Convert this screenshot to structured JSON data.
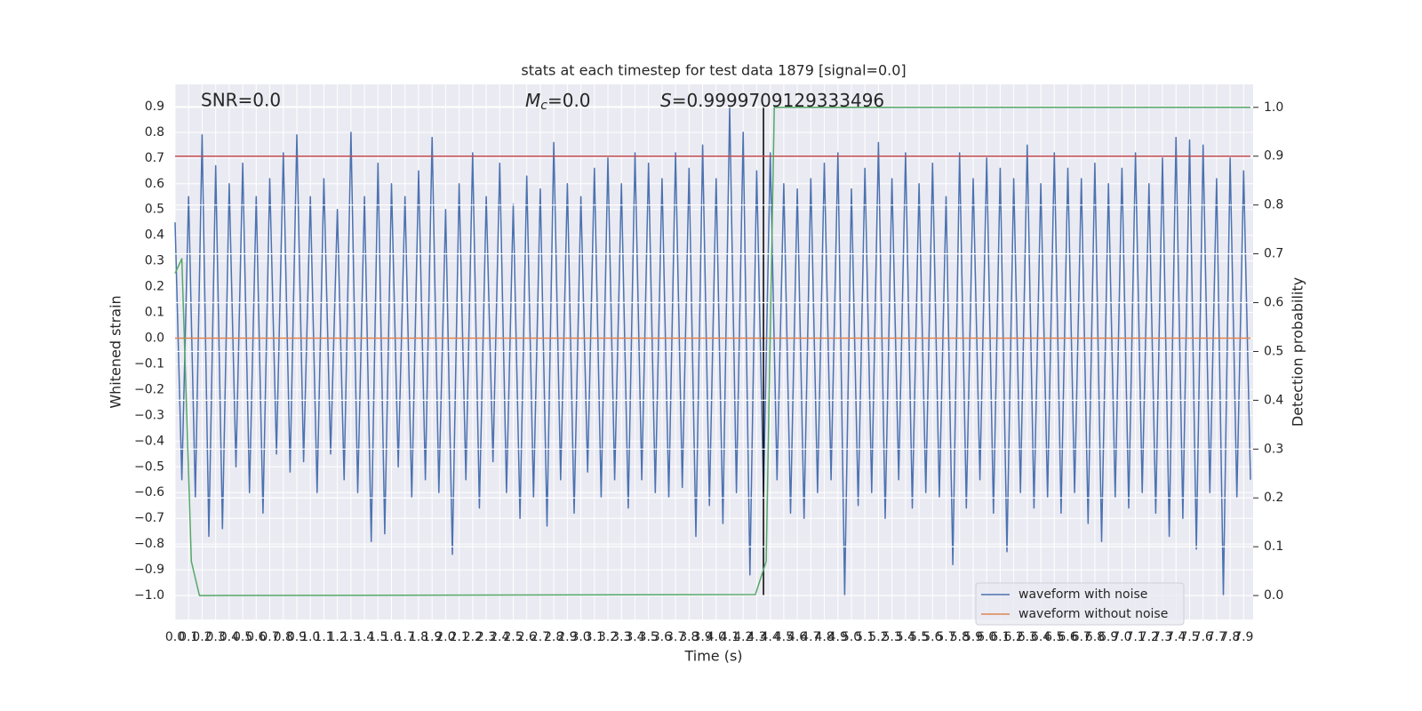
{
  "chart_data": {
    "type": "line",
    "title": "stats at each timestep for test data 1879 [signal=0.0]",
    "xlabel": "Time (s)",
    "ylabel": "Whitened strain",
    "y2label": "Detection probability",
    "annotations": {
      "snr": "SNR=0.0",
      "mc": {
        "symbol": "M",
        "sub": "c",
        "rest": "=0.0"
      },
      "s": {
        "symbol": "S",
        "rest": "=0.9999709129333496"
      }
    },
    "grid": true,
    "legend": "lower right",
    "xlim": [
      0,
      7.97
    ],
    "ylim": [
      -1.093,
      0.986
    ],
    "y2lim": [
      -0.049,
      1.047
    ],
    "xticks": [
      {
        "value": 0,
        "label": "0.0"
      },
      0.1,
      0.2,
      0.3,
      0.4,
      0.5,
      0.6,
      0.7,
      0.8,
      0.9,
      {
        "value": 1,
        "label": "1.0"
      },
      1.1,
      1.2,
      1.3,
      1.4,
      1.5,
      1.6,
      1.7,
      1.8,
      1.9,
      {
        "value": 2,
        "label": "2.0"
      },
      2.1,
      2.2,
      2.3,
      2.4,
      2.5,
      2.6,
      2.7,
      2.8,
      2.9,
      {
        "value": 3,
        "label": "3.0"
      },
      3.1,
      3.2,
      3.3,
      3.4,
      3.5,
      3.6,
      3.7,
      3.8,
      3.9,
      {
        "value": 4,
        "label": "4.0"
      },
      4.1,
      4.2,
      4.3,
      4.4,
      4.5,
      4.6,
      4.7,
      4.8,
      4.9,
      {
        "value": 5,
        "label": "5.0"
      },
      5.1,
      5.2,
      5.3,
      5.4,
      5.5,
      5.6,
      5.7,
      5.8,
      5.9,
      {
        "value": 6,
        "label": "6.0"
      },
      6.1,
      6.2,
      6.3,
      6.4,
      6.5,
      6.6,
      6.7,
      6.8,
      6.9,
      {
        "value": 7,
        "label": "7.0"
      },
      7.1,
      7.2,
      7.3,
      7.4,
      7.5,
      7.6,
      7.7,
      7.8,
      7.9
    ],
    "yticks": [
      0.9,
      0.8,
      0.7,
      0.6,
      0.5,
      0.4,
      0.3,
      0.2,
      0.1,
      {
        "value": 0,
        "label": "0.0"
      },
      {
        "value": -0.1,
        "label": "−0.1"
      },
      {
        "value": -0.2,
        "label": "−0.2"
      },
      {
        "value": -0.3,
        "label": "−0.3"
      },
      {
        "value": -0.4,
        "label": "−0.4"
      },
      {
        "value": -0.5,
        "label": "−0.5"
      },
      {
        "value": -0.6,
        "label": "−0.6"
      },
      {
        "value": -0.7,
        "label": "−0.7"
      },
      {
        "value": -0.8,
        "label": "−0.8"
      },
      {
        "value": -0.9,
        "label": "−0.9"
      },
      {
        "value": -1,
        "label": "−1.0"
      }
    ],
    "y2ticks": [
      {
        "value": 0,
        "label": "0.0"
      },
      0.1,
      0.2,
      0.3,
      0.4,
      0.5,
      0.6,
      0.7,
      0.8,
      0.9,
      {
        "value": 1,
        "label": "1.0"
      }
    ],
    "series": [
      {
        "name": "waveform with noise",
        "color": "#4c72b0",
        "x": [
          0,
          0.05,
          0.1,
          0.15,
          0.2,
          0.25,
          0.3,
          0.35,
          0.4,
          0.45,
          0.5,
          0.55,
          0.6,
          0.65,
          0.7,
          0.75,
          0.8,
          0.85,
          0.9,
          0.95,
          1,
          1.05,
          1.1,
          1.15,
          1.2,
          1.25,
          1.3,
          1.35,
          1.4,
          1.45,
          1.5,
          1.55,
          1.6,
          1.65,
          1.7,
          1.75,
          1.8,
          1.85,
          1.9,
          1.95,
          2,
          2.05,
          2.1,
          2.15,
          2.2,
          2.25,
          2.3,
          2.35,
          2.4,
          2.45,
          2.5,
          2.55,
          2.6,
          2.65,
          2.7,
          2.75,
          2.8,
          2.85,
          2.9,
          2.95,
          3,
          3.05,
          3.1,
          3.15,
          3.2,
          3.25,
          3.3,
          3.35,
          3.4,
          3.45,
          3.5,
          3.55,
          3.6,
          3.65,
          3.7,
          3.75,
          3.8,
          3.85,
          3.9,
          3.95,
          4,
          4.05,
          4.1,
          4.15,
          4.2,
          4.25,
          4.3,
          4.35,
          4.4,
          4.45,
          4.5,
          4.55,
          4.6,
          4.65,
          4.7,
          4.75,
          4.8,
          4.85,
          4.9,
          4.95,
          5,
          5.05,
          5.1,
          5.15,
          5.2,
          5.25,
          5.3,
          5.35,
          5.4,
          5.45,
          5.5,
          5.55,
          5.6,
          5.65,
          5.7,
          5.75,
          5.8,
          5.85,
          5.9,
          5.95,
          6,
          6.05,
          6.1,
          6.15,
          6.2,
          6.25,
          6.3,
          6.35,
          6.4,
          6.45,
          6.5,
          6.55,
          6.6,
          6.65,
          6.7,
          6.75,
          6.8,
          6.85,
          6.9,
          6.95,
          7,
          7.05,
          7.1,
          7.15,
          7.2,
          7.25,
          7.3,
          7.35,
          7.4,
          7.45,
          7.5,
          7.55,
          7.6,
          7.65,
          7.7,
          7.75,
          7.8,
          7.85,
          7.9,
          7.95
        ],
        "values": [
          0.45,
          -0.55,
          0.55,
          -0.62,
          0.79,
          -0.77,
          0.67,
          -0.74,
          0.6,
          -0.5,
          0.68,
          -0.6,
          0.55,
          -0.68,
          0.62,
          -0.45,
          0.72,
          -0.52,
          0.79,
          -0.48,
          0.55,
          -0.6,
          0.62,
          -0.45,
          0.5,
          -0.55,
          0.8,
          -0.6,
          0.55,
          -0.79,
          0.68,
          -0.76,
          0.6,
          -0.5,
          0.55,
          -0.62,
          0.65,
          -0.55,
          0.78,
          -0.6,
          0.5,
          -0.84,
          0.6,
          -0.55,
          0.72,
          -0.66,
          0.55,
          -0.48,
          0.68,
          -0.6,
          0.52,
          -0.7,
          0.63,
          -0.62,
          0.58,
          -0.73,
          0.76,
          -0.55,
          0.6,
          -0.68,
          0.55,
          -0.52,
          0.66,
          -0.62,
          0.7,
          -0.55,
          0.6,
          -0.66,
          0.72,
          -0.55,
          0.68,
          -0.6,
          0.62,
          -0.62,
          0.72,
          -0.58,
          0.66,
          -0.77,
          0.75,
          -0.65,
          0.62,
          -0.72,
          0.9,
          -0.6,
          0.8,
          -0.92,
          0.65,
          -0.6,
          0.72,
          -0.55,
          0.6,
          -0.68,
          0.58,
          -0.7,
          0.62,
          -0.6,
          0.68,
          -0.55,
          0.72,
          -1.0,
          0.58,
          -0.65,
          0.66,
          -0.6,
          0.76,
          -0.7,
          0.62,
          -0.55,
          0.72,
          -0.66,
          0.6,
          -0.6,
          0.68,
          -0.62,
          0.55,
          -0.88,
          0.72,
          -0.66,
          0.62,
          -0.55,
          0.7,
          -0.68,
          0.66,
          -0.83,
          0.62,
          -0.6,
          0.75,
          -0.66,
          0.6,
          -0.62,
          0.72,
          -0.68,
          0.66,
          -0.6,
          0.62,
          -0.72,
          0.68,
          -0.79,
          0.6,
          -0.62,
          0.66,
          -0.66,
          0.72,
          -0.6,
          0.6,
          -0.68,
          0.7,
          -0.77,
          0.78,
          -0.7,
          0.77,
          -0.82,
          0.75,
          -0.6,
          0.62,
          -1.0,
          0.7,
          -0.62,
          0.65,
          -0.55
        ]
      },
      {
        "name": "waveform without noise",
        "color": "#dd8452",
        "x": [
          0,
          7.95
        ],
        "values": [
          0,
          0
        ]
      }
    ],
    "vline": {
      "x": 4.35,
      "ymin": -1.0,
      "ymax": 0.9,
      "color": "#000000"
    },
    "threshold": {
      "value": 0.9,
      "axis": "y2",
      "color": "#c44e52",
      "x": [
        0,
        7.95
      ]
    },
    "detection_probability": {
      "axis": "y2",
      "color": "#55a868",
      "x": [
        0,
        0.05,
        0.12,
        0.18,
        4.29,
        4.37,
        4.43,
        7.95
      ],
      "values": [
        0.66,
        0.69,
        0.07,
        0,
        0.002,
        0.07,
        1.0,
        1.0
      ]
    }
  }
}
